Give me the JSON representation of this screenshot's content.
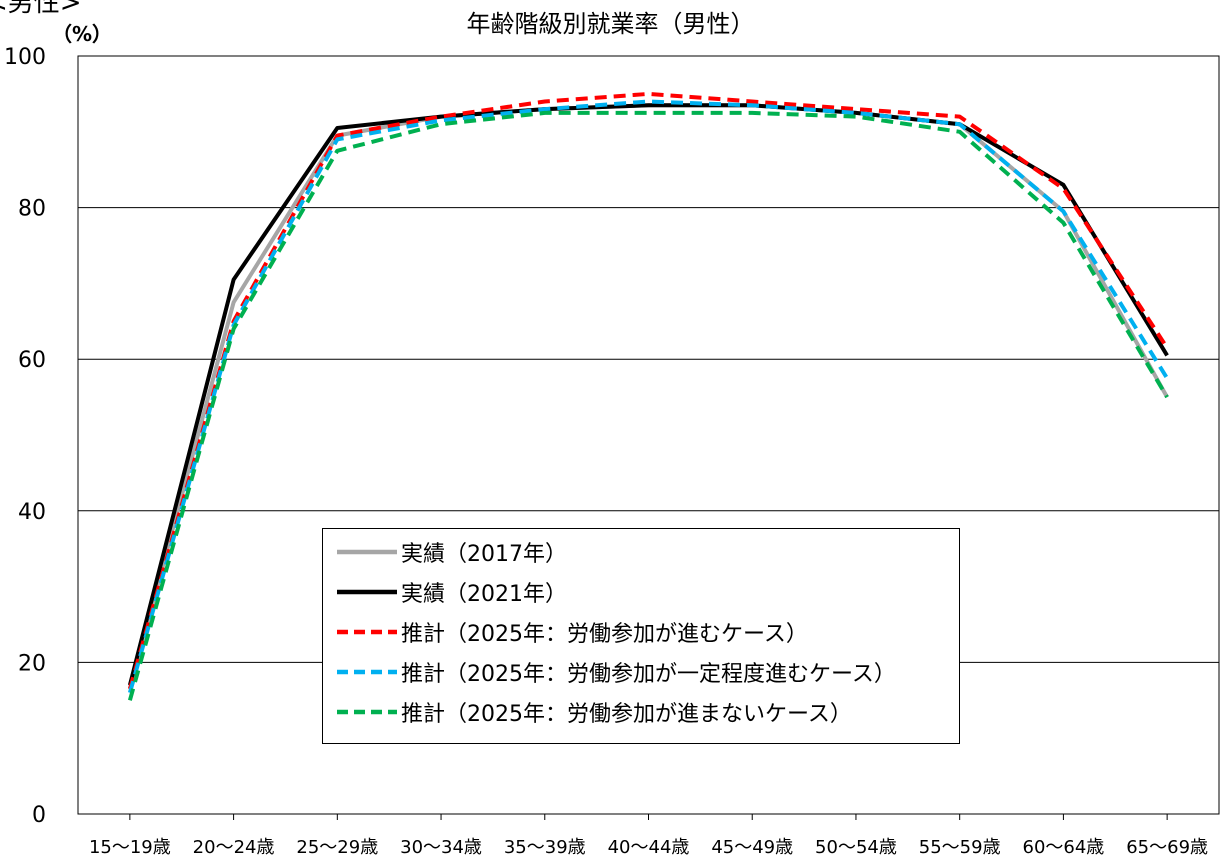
{
  "header": {
    "corner_label": "<男性>",
    "unit_label": "（%）",
    "title": "年齢階級別就業率（男性）"
  },
  "colors": {
    "actual_2017": "#a6a6a6",
    "actual_2021": "#000000",
    "proj_advance": "#ff0000",
    "proj_moderate": "#00b0f0",
    "proj_no_advance": "#00b050",
    "gridline": "#000000"
  },
  "chart_data": {
    "type": "line",
    "title": "年齢階級別就業率（男性）",
    "ylabel": "（%）",
    "xlabel": "",
    "ylim": [
      0,
      100
    ],
    "yticks": [
      0,
      20,
      40,
      60,
      80,
      100
    ],
    "grid": true,
    "legend_position": "lower-center",
    "categories": [
      "15～19歳",
      "20～24歳",
      "25～29歳",
      "30～34歳",
      "35～39歳",
      "40～44歳",
      "45～49歳",
      "50～54歳",
      "55～59歳",
      "60～64歳",
      "65～69歳"
    ],
    "series": [
      {
        "name": "実績（2017年）",
        "color": "#a6a6a6",
        "dash": "solid",
        "values": [
          16.5,
          67.5,
          89.5,
          92.0,
          93.0,
          93.5,
          93.5,
          92.5,
          91.0,
          79.5,
          55.0
        ]
      },
      {
        "name": "実績（2021年）",
        "color": "#000000",
        "dash": "solid",
        "values": [
          17.0,
          70.5,
          90.5,
          92.0,
          93.0,
          93.5,
          93.5,
          92.5,
          91.0,
          83.0,
          60.5
        ]
      },
      {
        "name": "推計（2025年：労働参加が進むケース）",
        "color": "#ff0000",
        "dash": "dashed",
        "values": [
          16.5,
          65.0,
          89.5,
          92.0,
          94.0,
          95.0,
          94.0,
          93.0,
          92.0,
          82.5,
          61.5
        ]
      },
      {
        "name": "推計（2025年：労働参加が一定程度進むケース）",
        "color": "#00b0f0",
        "dash": "dashed",
        "values": [
          16.0,
          64.5,
          89.0,
          91.5,
          93.0,
          94.0,
          93.5,
          92.5,
          91.0,
          79.5,
          57.5
        ]
      },
      {
        "name": "推計（2025年：労働参加が進まないケース）",
        "color": "#00b050",
        "dash": "dashed",
        "values": [
          15.0,
          64.0,
          87.5,
          91.0,
          92.5,
          92.5,
          92.5,
          92.0,
          90.0,
          78.0,
          55.0
        ]
      }
    ]
  }
}
